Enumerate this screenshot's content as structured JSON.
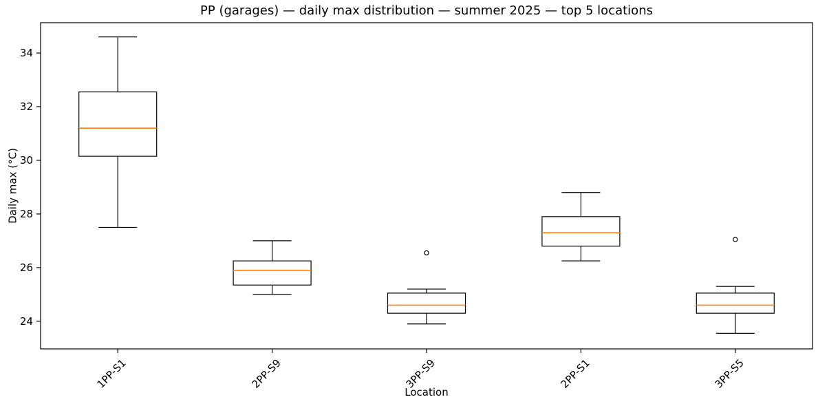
{
  "chart_data": {
    "type": "boxplot",
    "title": "PP (garages) — daily max distribution — summer 2025 — top 5 locations",
    "xlabel": "Location",
    "ylabel": "Daily max (°C)",
    "categories": [
      "1PP-S1",
      "2PP-S9",
      "3PP-S9",
      "2PP-S1",
      "3PP-S5"
    ],
    "series": [
      {
        "name": "1PP-S1",
        "whisker_low": 27.5,
        "q1": 30.15,
        "median": 31.2,
        "q3": 32.55,
        "whisker_high": 34.6,
        "outliers": []
      },
      {
        "name": "2PP-S9",
        "whisker_low": 25.0,
        "q1": 25.35,
        "median": 25.9,
        "q3": 26.25,
        "whisker_high": 27.0,
        "outliers": []
      },
      {
        "name": "3PP-S9",
        "whisker_low": 23.9,
        "q1": 24.3,
        "median": 24.6,
        "q3": 25.05,
        "whisker_high": 25.2,
        "outliers": [
          26.55
        ]
      },
      {
        "name": "2PP-S1",
        "whisker_low": 26.25,
        "q1": 26.8,
        "median": 27.3,
        "q3": 27.9,
        "whisker_high": 28.8,
        "outliers": []
      },
      {
        "name": "3PP-S5",
        "whisker_low": 23.55,
        "q1": 24.3,
        "median": 24.6,
        "q3": 25.05,
        "whisker_high": 25.3,
        "outliers": [
          27.05
        ]
      }
    ],
    "yticks": [
      24,
      26,
      28,
      30,
      32,
      34
    ],
    "ylim": [
      22.97,
      35.13
    ],
    "grid": false,
    "legend_position": "none",
    "colors": {
      "median": "#ff7f0e",
      "box_stroke": "#000000",
      "whisker": "#000000",
      "outlier_stroke": "#000000",
      "text": "#000000",
      "background": "#ffffff"
    }
  }
}
